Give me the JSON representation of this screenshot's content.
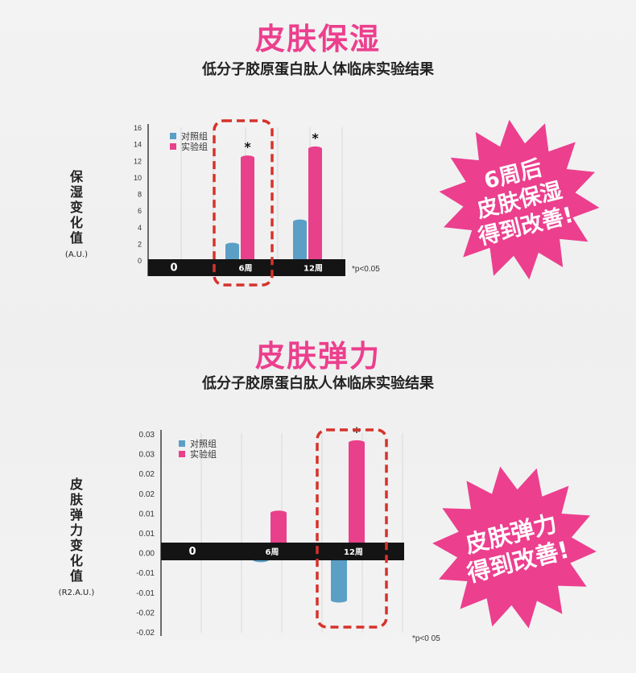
{
  "sections": [
    {
      "title": "皮肤保湿",
      "subtitle": "低分子胶原蛋白肽人体临床实验结果",
      "ylabel_chars": [
        "保",
        "湿",
        "变",
        "化",
        "值"
      ],
      "ylabel_unit": "(A.U.)",
      "badge_lines": [
        "6周后",
        "皮肤保湿",
        "得到改善!"
      ]
    },
    {
      "title": "皮肤弹力",
      "subtitle": "低分子胶原蛋白肽人体临床实验结果",
      "ylabel_chars": [
        "皮",
        "肤",
        "弹",
        "力",
        "变",
        "化",
        "值"
      ],
      "ylabel_unit": "(R2.A.U.)",
      "badge_lines": [
        "皮肤弹力",
        "得到改善!"
      ]
    }
  ],
  "colors": {
    "control": "#5b9fc6",
    "experiment": "#e8408a",
    "accent_title": "#ec3f8e",
    "axis_bar": "#141414",
    "highlight_dash": "#d6322b",
    "badge": "#ec3f8e"
  },
  "chart_data": [
    {
      "type": "bar",
      "categories": [
        "0",
        "6周",
        "12周"
      ],
      "series": [
        {
          "name": "对照组",
          "values": [
            0,
            1.8,
            4.6
          ]
        },
        {
          "name": "实验组",
          "values": [
            0,
            12.3,
            13.4
          ]
        }
      ],
      "ylim": [
        0,
        16
      ],
      "yticks": [
        "0",
        "2",
        "4",
        "6",
        "8",
        "10",
        "12",
        "14",
        "16"
      ],
      "annotations": [
        {
          "category": "6周",
          "text": "*"
        },
        {
          "category": "12周",
          "text": "*"
        }
      ],
      "highlight_category": "6周",
      "footnote": "*p<0.05",
      "legend": "top-left"
    },
    {
      "type": "bar",
      "categories": [
        "0",
        "6周",
        "12周"
      ],
      "series": [
        {
          "name": "对照组",
          "values": [
            0,
            -0.003,
            -0.0135
          ]
        },
        {
          "name": "实验组",
          "values": [
            0,
            0.0092,
            0.0275
          ]
        }
      ],
      "ylim": [
        -0.022,
        0.03
      ],
      "yticks": [
        "0.03",
        "0.03",
        "0.02",
        "0.02",
        "0.01",
        "0.01",
        "0.00",
        "-0.01",
        "-0.01",
        "-0.02",
        "-0.02"
      ],
      "annotations": [
        {
          "category": "12周",
          "text": "*"
        }
      ],
      "highlight_category": "12周",
      "footnote": "*p<0 05",
      "legend": "top-left"
    }
  ]
}
